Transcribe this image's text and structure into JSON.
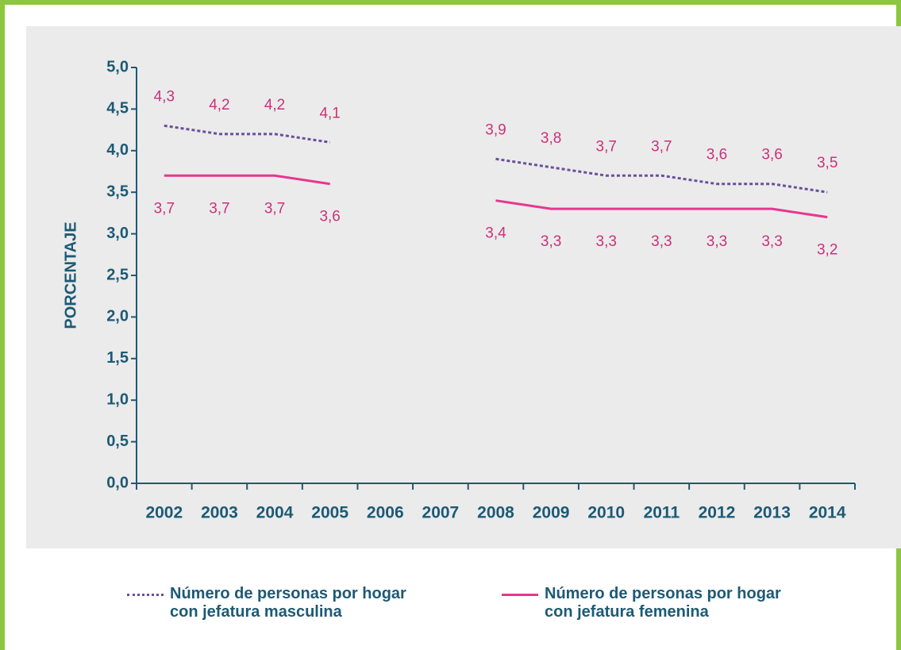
{
  "chart_data": {
    "type": "line",
    "y_label": "PORCENTAJE",
    "categories": [
      "2002",
      "2003",
      "2004",
      "2005",
      "2006",
      "2007",
      "2008",
      "2009",
      "2010",
      "2011",
      "2012",
      "2013",
      "2014"
    ],
    "series": [
      {
        "name": "Número de personas por hogar con jefatura masculina",
        "color": "#6a4f9c",
        "dash": true,
        "values": [
          4.3,
          4.2,
          4.2,
          4.1,
          null,
          null,
          3.9,
          3.8,
          3.7,
          3.7,
          3.6,
          3.6,
          3.5
        ],
        "value_labels": [
          "4,3",
          "4,2",
          "4,2",
          "4,1",
          null,
          null,
          "3,9",
          "3,8",
          "3,7",
          "3,7",
          "3,6",
          "3,6",
          "3,5"
        ]
      },
      {
        "name": "Número de personas por hogar con jefatura femenina",
        "color": "#e8368f",
        "dash": false,
        "values": [
          3.7,
          3.7,
          3.7,
          3.6,
          null,
          null,
          3.4,
          3.3,
          3.3,
          3.3,
          3.3,
          3.3,
          3.2
        ],
        "value_labels": [
          "3,7",
          "3,7",
          "3,7",
          "3,6",
          null,
          null,
          "3,4",
          "3,3",
          "3,3",
          "3,3",
          "3,3",
          "3,3",
          "3,2"
        ]
      }
    ],
    "ylim": [
      0,
      5
    ],
    "yticks": [
      {
        "value": 0,
        "label": "0,0"
      },
      {
        "value": 0.5,
        "label": "0,5"
      },
      {
        "value": 1,
        "label": "1,0"
      },
      {
        "value": 1.5,
        "label": "1,5"
      },
      {
        "value": 2,
        "label": "2,0"
      },
      {
        "value": 2.5,
        "label": "2,5"
      },
      {
        "value": 3,
        "label": "3,0"
      },
      {
        "value": 3.5,
        "label": "3,5"
      },
      {
        "value": 4,
        "label": "4,0"
      },
      {
        "value": 4.5,
        "label": "4,5"
      },
      {
        "value": 5,
        "label": "5,0"
      }
    ]
  }
}
